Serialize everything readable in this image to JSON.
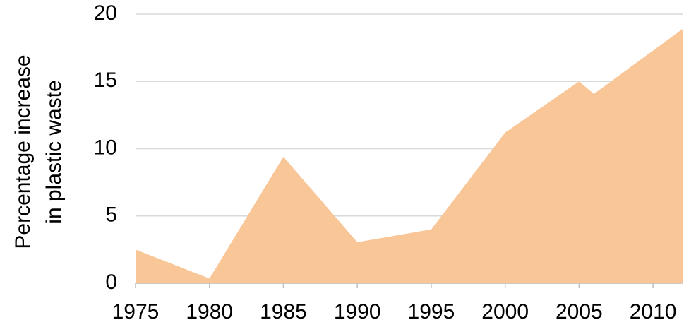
{
  "chart_data": {
    "type": "area",
    "ylabel": [
      "Percentage increase",
      "in plastic waste"
    ],
    "x": [
      1975,
      1980,
      1985,
      1990,
      1995,
      2000,
      2005,
      2006,
      2012
    ],
    "values": [
      2.5,
      0.35,
      9.4,
      3.05,
      4.0,
      11.2,
      15.0,
      14.07,
      18.9
    ],
    "color": "#f9c698",
    "xlim": [
      1975,
      2012
    ],
    "xticks": [
      1975,
      1980,
      1985,
      1990,
      1995,
      2000,
      2005,
      2010
    ],
    "ylim": [
      0,
      20
    ],
    "yticks": [
      0,
      5,
      10,
      15,
      20
    ],
    "grid": true
  }
}
